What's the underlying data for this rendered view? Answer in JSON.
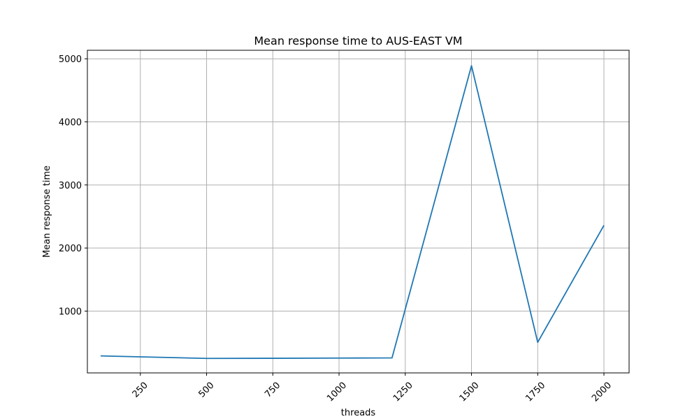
{
  "chart_data": {
    "type": "line",
    "title": "Mean response time to AUS-EAST VM",
    "xlabel": "threads",
    "ylabel": "Mean response time",
    "x": [
      100,
      250,
      500,
      750,
      1000,
      1200,
      1500,
      1750,
      2000
    ],
    "series": [
      {
        "name": "",
        "color": "#1f77b4",
        "values": [
          290,
          275,
          250,
          252,
          255,
          258,
          4890,
          505,
          2360
        ]
      }
    ],
    "xlim": [
      50,
      2095
    ],
    "ylim": [
      20,
      5135
    ],
    "xticks": [
      250,
      500,
      750,
      1000,
      1250,
      1500,
      1750,
      2000
    ],
    "yticks": [
      1000,
      2000,
      3000,
      4000,
      5000
    ],
    "xtick_rotation": 45,
    "grid": true,
    "legend": "none"
  }
}
